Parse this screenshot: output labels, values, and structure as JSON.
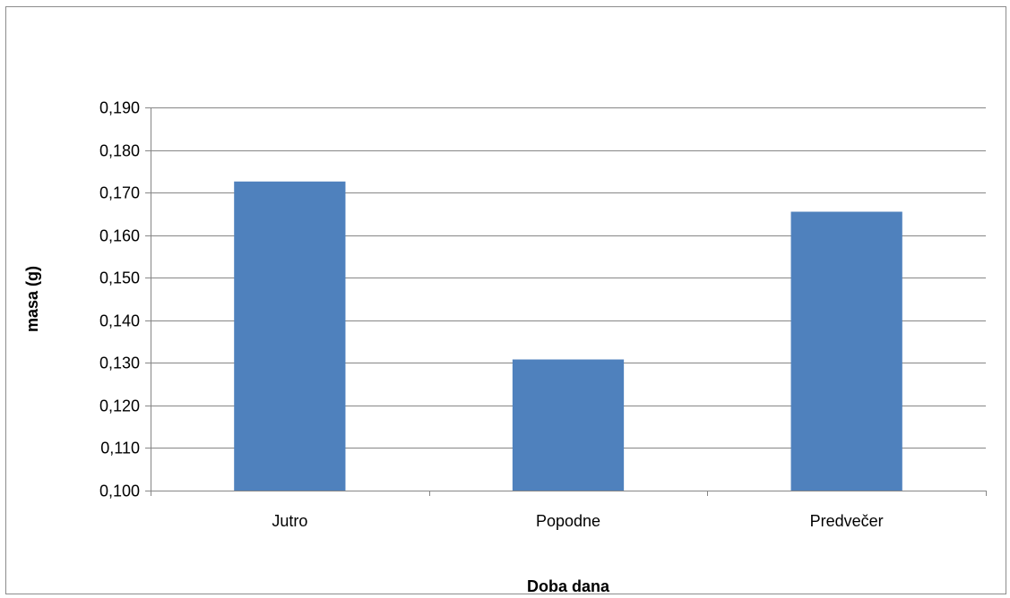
{
  "chart_data": {
    "type": "bar",
    "title": "",
    "xlabel": "Doba dana",
    "ylabel": "masa (g)",
    "categories": [
      "Jutro",
      "Popodne",
      "Predvečer"
    ],
    "series": [
      {
        "values": [
          0.1726,
          0.1308,
          0.1655
        ],
        "color": "#4f81bd"
      }
    ],
    "ylim": [
      0.1,
      0.19
    ],
    "yticks": [
      0.1,
      0.11,
      0.12,
      0.13,
      0.14,
      0.15,
      0.16,
      0.17,
      0.18,
      0.19
    ],
    "ytick_labels": [
      "0,100",
      "0,110",
      "0,120",
      "0,130",
      "0,140",
      "0,150",
      "0,160",
      "0,170",
      "0,180",
      "0,190"
    ],
    "grid": true,
    "gridline_color": "#868686",
    "legend": "none"
  }
}
